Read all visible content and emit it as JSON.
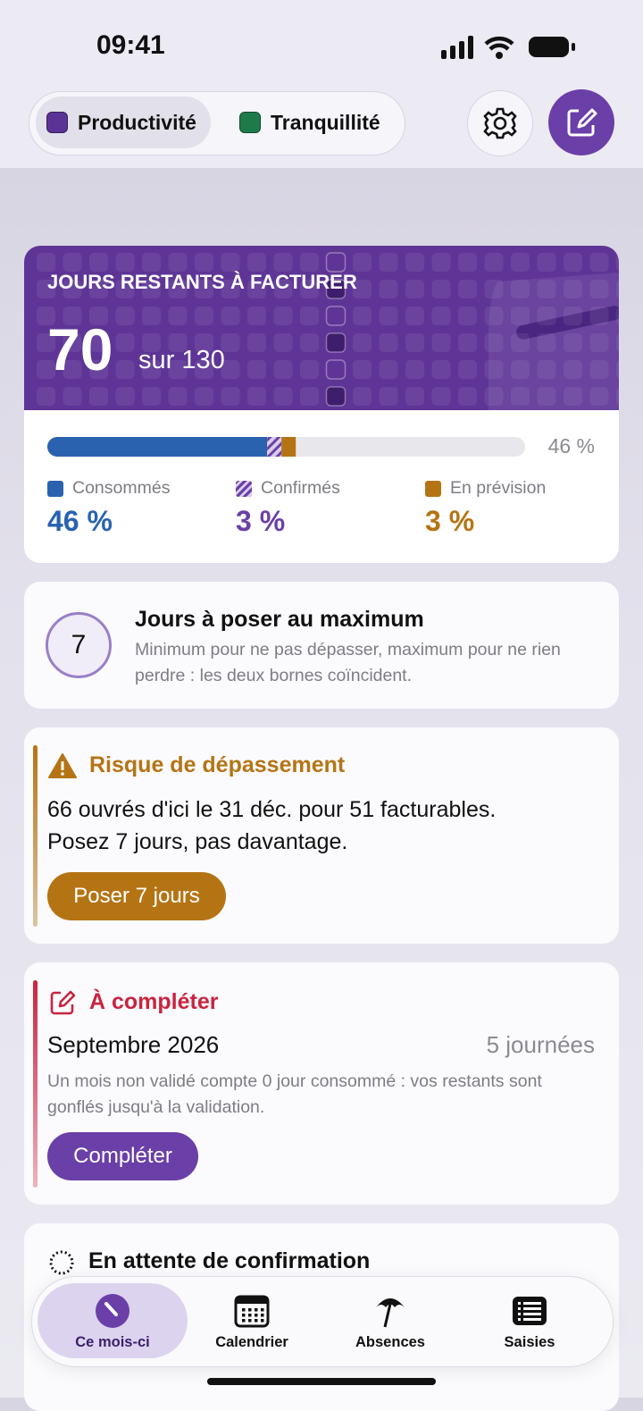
{
  "status_bar": {
    "time": "09:41"
  },
  "header": {
    "tabs": [
      {
        "label": "Productivité",
        "selected": true,
        "color": "#5b3397"
      },
      {
        "label": "Tranquillité",
        "selected": false,
        "color": "#1f7a4a"
      }
    ]
  },
  "hero": {
    "title": "JOURS RESTANTS À FACTURER",
    "remaining": "70",
    "total_label": "sur 130",
    "progress": {
      "label": "46 %",
      "segments": [
        {
          "name": "Consommés",
          "value": 46,
          "label": "46 %",
          "color": "#2a62b0",
          "pattern": "solid"
        },
        {
          "name": "Confirmés",
          "value": 3,
          "label": "3 %",
          "color": "#6b3fa8",
          "pattern": "hatch"
        },
        {
          "name": "En prévision",
          "value": 3,
          "label": "3 %",
          "color": "#b57414",
          "pattern": "solid"
        }
      ]
    }
  },
  "max_days": {
    "count": "7",
    "title": "Jours à poser au maximum",
    "description": "Minimum pour ne pas dépasser, maximum pour ne rien perdre : les deux bornes coïncident."
  },
  "risk": {
    "title": "Risque de dépassement",
    "lines": [
      "66 ouvrés d'ici le 31 déc. pour 51 facturables.",
      "Posez 7 jours, pas davantage."
    ],
    "button": "Poser 7 jours"
  },
  "to_complete": {
    "title": "À compléter",
    "month": "Septembre 2026",
    "days": "5 journées",
    "description": "Un mois non validé compte 0 jour consommé : vos restants sont gonflés jusqu'à la validation.",
    "button": "Compléter"
  },
  "pending": {
    "title": "En attente de confirmation"
  },
  "tab_bar": {
    "items": [
      {
        "label": "Ce mois-ci",
        "selected": true
      },
      {
        "label": "Calendrier",
        "selected": false
      },
      {
        "label": "Absences",
        "selected": false
      },
      {
        "label": "Saisies",
        "selected": false
      }
    ]
  }
}
